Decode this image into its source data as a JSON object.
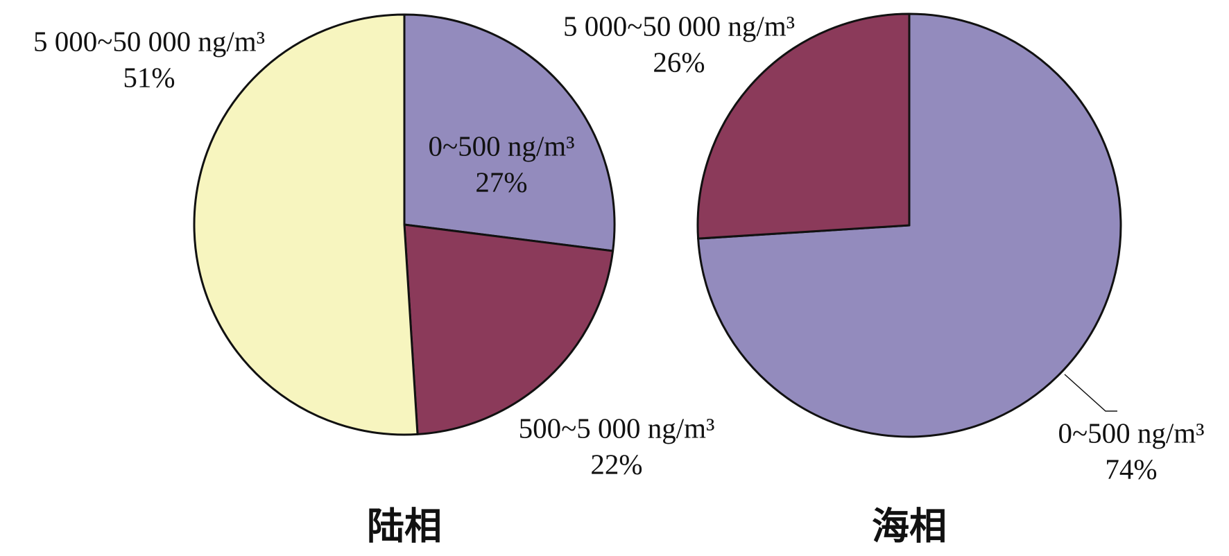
{
  "chart_data": [
    {
      "type": "pie",
      "title": "陆相",
      "categories": [
        "0~500 ng/m³",
        "500~5 000 ng/m³",
        "5 000~50 000 ng/m³"
      ],
      "values": [
        27,
        22,
        51
      ],
      "value_labels": [
        "27%",
        "22%",
        "51%"
      ],
      "colors": [
        "#938bbd",
        "#8b3a5a",
        "#f7f5bf"
      ]
    },
    {
      "type": "pie",
      "title": "海相",
      "categories": [
        "0~500 ng/m³",
        "5 000~50 000 ng/m³"
      ],
      "values": [
        74,
        26
      ],
      "value_labels": [
        "74%",
        "26%"
      ],
      "colors": [
        "#938bbd",
        "#8b3a5a"
      ]
    }
  ]
}
